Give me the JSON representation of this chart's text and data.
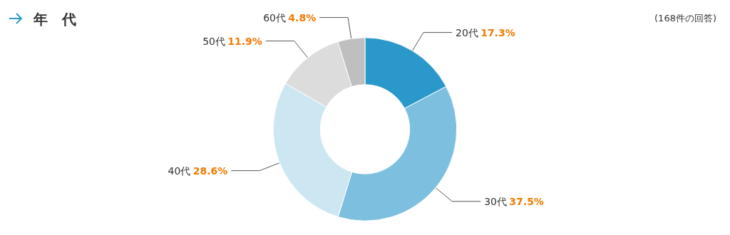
{
  "chart_data": {
    "type": "donut",
    "title": "年　代",
    "annotations": [
      "(168件の回答)"
    ],
    "categories": [
      "20代",
      "30代",
      "40代",
      "50代",
      "60代"
    ],
    "values": [
      17.3,
      37.5,
      28.6,
      11.9,
      4.8
    ],
    "colors": [
      "#2a98cb",
      "#7dbfdf",
      "#cce6f2",
      "#dcdcdc",
      "#bfbfbf"
    ],
    "value_labels": [
      "17.3%",
      "37.5%",
      "28.6%",
      "11.9%",
      "4.8%"
    ]
  }
}
